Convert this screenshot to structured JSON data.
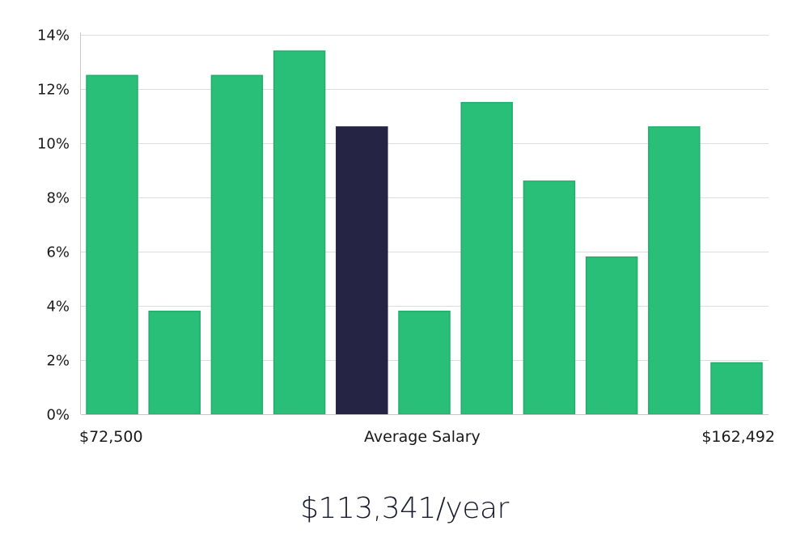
{
  "chart_data": {
    "type": "bar",
    "title": "",
    "xlabel": "Average Salary",
    "ylabel": "",
    "x_min_label": "$72,500",
    "x_max_label": "$162,492",
    "values": [
      12.5,
      3.8,
      12.5,
      13.4,
      10.6,
      3.8,
      11.5,
      8.6,
      5.8,
      10.6,
      1.9
    ],
    "highlight_index": 4,
    "ylim": [
      0,
      14
    ],
    "yticks": [
      0,
      2,
      4,
      6,
      8,
      10,
      12,
      14
    ],
    "ytick_suffix": "%",
    "grid": true,
    "colors": {
      "bar": "#2abf78",
      "bar_edge": "#22ad6b",
      "highlight": "#262444",
      "grid": "#dddddd",
      "axis": "#c8c8c8"
    }
  },
  "summary": {
    "salary_text": "$113,341/year"
  }
}
